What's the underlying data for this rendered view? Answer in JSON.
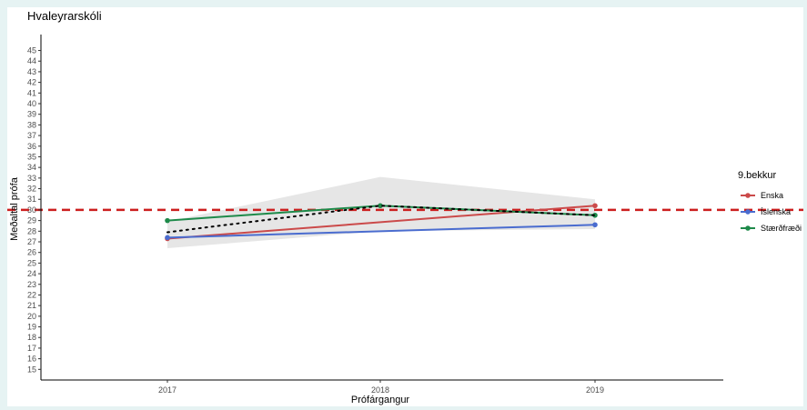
{
  "chart_data": {
    "type": "line",
    "title": "Hvaleyrarskóli",
    "xlabel": "Prófárgangur",
    "ylabel": "Meðaltal prófa",
    "x": [
      "2017",
      "2018",
      "2019"
    ],
    "ylim": [
      14,
      46.5
    ],
    "yticks": [
      15,
      16,
      17,
      18,
      19,
      20,
      21,
      22,
      23,
      24,
      25,
      26,
      27,
      28,
      29,
      30,
      31,
      32,
      33,
      34,
      35,
      36,
      37,
      38,
      39,
      40,
      41,
      42,
      43,
      44,
      45
    ],
    "grid": false,
    "reference_line": {
      "y": 30,
      "color": "#cc1f1f",
      "style": "dashed"
    },
    "legend": {
      "title": "9.bekkur",
      "position": "right"
    },
    "series": [
      {
        "name": "Enska",
        "color": "#cb4a4a",
        "values": [
          27.3,
          null,
          30.4
        ]
      },
      {
        "name": "Íslenska",
        "color": "#4a6ccf",
        "values": [
          27.4,
          null,
          28.6
        ]
      },
      {
        "name": "Stærðfræði",
        "color": "#1e8a4a",
        "values": [
          29.0,
          30.4,
          29.5
        ]
      }
    ],
    "mean_line": {
      "values": [
        27.9,
        30.4,
        29.5
      ],
      "color": "#000000",
      "style": "dotted"
    },
    "confidence_band": {
      "lower": [
        26.4,
        28.0,
        28.2
      ],
      "upper": [
        28.9,
        33.1,
        31.0
      ],
      "color": "#e6e6e6"
    }
  }
}
